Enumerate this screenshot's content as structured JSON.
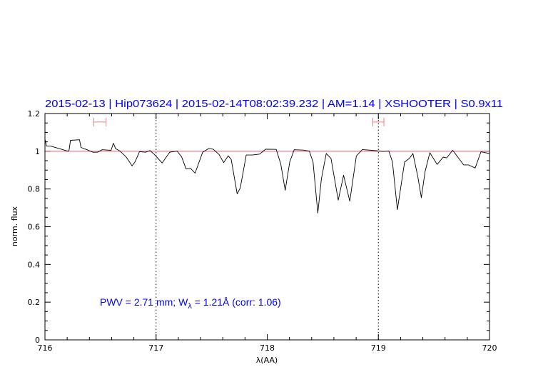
{
  "chart_data": {
    "type": "line",
    "title": "2015-02-13  |  Hip073624  |  2015-02-14T08:02:39.232  |  AM=1.14  |  XSHOOTER  |  S0.9x11",
    "xlabel": "λ(AA)",
    "ylabel": "norm. flux",
    "xlim": [
      716,
      720
    ],
    "ylim": [
      0,
      1.2
    ],
    "xticks": [
      "716",
      "717",
      "718",
      "719",
      "720"
    ],
    "yticks": [
      "0",
      "0.2",
      "0.4",
      "0.6",
      "0.8",
      "1",
      "1.2"
    ],
    "grid": false,
    "annotation": {
      "prefix": "PWV  =  2.71  mm;  W",
      "sub": "λ",
      "suffix": "  =  1.21Å  (corr:  1.06)"
    },
    "reference_line": {
      "y": 1.0,
      "color": "#e06060"
    },
    "dotted_lines_x": [
      717,
      719
    ],
    "ranges": [
      {
        "x": [
          716.44,
          716.55
        ],
        "y": 1.155
      },
      {
        "x": [
          718.95,
          719.05
        ],
        "y": 1.155
      }
    ],
    "colors": {
      "title": "#0000ff",
      "spectrum": "#000000",
      "ranges": "#f08080"
    },
    "series": [
      {
        "x": [
          716.0,
          716.014,
          716.054,
          716.203,
          716.216,
          716.23,
          716.311,
          716.324,
          716.378,
          716.432,
          716.473,
          716.514,
          716.595,
          716.616,
          716.635,
          716.676,
          716.73,
          716.784,
          716.811,
          716.851,
          716.905,
          716.946,
          716.986,
          717.054,
          717.122,
          717.189,
          717.23,
          717.27,
          717.311,
          717.351,
          717.419,
          717.473,
          717.514,
          717.568,
          717.608,
          717.649,
          717.676,
          717.73,
          717.757,
          717.811,
          717.865,
          717.932,
          717.986,
          718.081,
          718.122,
          718.162,
          718.203,
          718.243,
          718.324,
          718.379,
          718.412,
          718.455,
          718.487,
          718.531,
          718.574,
          718.639,
          718.687,
          718.743,
          718.802,
          718.856,
          718.943,
          719.041,
          719.095,
          719.127,
          719.171,
          719.236,
          719.279,
          719.311,
          719.355,
          719.387,
          719.42,
          719.463,
          719.529,
          719.583,
          719.615,
          719.669,
          719.724,
          719.767,
          719.81,
          719.871,
          719.923,
          720.0
        ],
        "y": [
          1.064,
          1.027,
          1.027,
          1.001,
          1.001,
          1.058,
          1.061,
          1.02,
          1.008,
          0.995,
          0.995,
          1.008,
          1.005,
          1.043,
          1.014,
          1.001,
          0.97,
          0.923,
          0.944,
          0.998,
          0.995,
          1.004,
          0.982,
          0.938,
          0.995,
          1.001,
          0.97,
          0.906,
          0.909,
          0.884,
          0.995,
          1.014,
          1.011,
          0.982,
          0.94,
          0.976,
          0.957,
          0.774,
          0.805,
          0.98,
          0.98,
          0.985,
          1.011,
          1.01,
          0.932,
          0.793,
          0.944,
          1.008,
          1.006,
          1.001,
          0.943,
          0.672,
          0.853,
          0.988,
          0.962,
          0.741,
          0.873,
          0.735,
          0.975,
          1.009,
          1.005,
          0.999,
          1.001,
          0.943,
          0.69,
          0.943,
          0.962,
          0.988,
          0.866,
          0.754,
          0.892,
          0.992,
          0.93,
          0.969,
          0.965,
          1.005,
          0.962,
          0.928,
          0.928,
          0.911,
          0.997,
          0.988
        ]
      }
    ]
  }
}
